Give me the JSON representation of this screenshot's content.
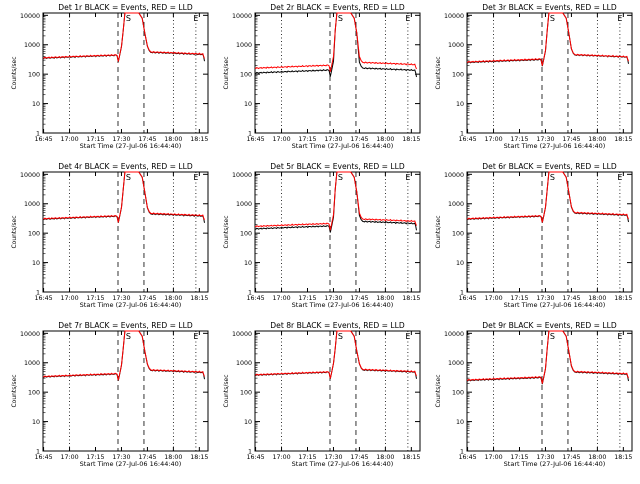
{
  "colors": {
    "events": "#000000",
    "lld": "#ff0000",
    "frame": "#000000",
    "background": "#ffffff"
  },
  "shared": {
    "xlabel": "Start Time (27-Jul-06 16:44:40)",
    "ylabel": "Counts/sec",
    "xticks": [
      "16:45",
      "17:00",
      "17:15",
      "17:30",
      "17:45",
      "18:00",
      "18:15"
    ],
    "yticks": [
      "1",
      "10",
      "100",
      "1000",
      "10000"
    ],
    "marker_S": "S",
    "marker_E": "E"
  },
  "chart_data": [
    {
      "type": "line",
      "title": "Det 1r BLACK = Events, RED = LLD",
      "xlabel": "Start Time (27-Jul-06 16:44:40)",
      "ylabel": "Counts/sec",
      "xlim": [
        "16:44:40",
        "18:20"
      ],
      "ylim": [
        1,
        12000
      ],
      "yscale": "log",
      "series": [
        {
          "name": "Events",
          "color": "#000000",
          "base": 350,
          "post": 550
        },
        {
          "name": "LLD",
          "color": "#ff0000",
          "base": 360,
          "post": 570
        }
      ],
      "markers": {
        "S": "17:34",
        "E": "18:13"
      }
    },
    {
      "type": "line",
      "title": "Det 2r BLACK = Events, RED = LLD",
      "xlabel": "Start Time (27-Jul-06 16:44:40)",
      "ylabel": "Counts/sec",
      "xlim": [
        "16:44:40",
        "18:20"
      ],
      "ylim": [
        1,
        12000
      ],
      "yscale": "log",
      "series": [
        {
          "name": "Events",
          "color": "#000000",
          "base": 110,
          "post": 160
        },
        {
          "name": "LLD",
          "color": "#ff0000",
          "base": 160,
          "post": 250
        }
      ],
      "markers": {
        "S": "17:34",
        "E": "18:13"
      }
    },
    {
      "type": "line",
      "title": "Det 3r BLACK = Events, RED = LLD",
      "xlabel": "Start Time (27-Jul-06 16:44:40)",
      "ylabel": "Counts/sec",
      "xlim": [
        "16:44:40",
        "18:20"
      ],
      "ylim": [
        1,
        12000
      ],
      "yscale": "log",
      "series": [
        {
          "name": "Events",
          "color": "#000000",
          "base": 250,
          "post": 450
        },
        {
          "name": "LLD",
          "color": "#ff0000",
          "base": 260,
          "post": 460
        }
      ],
      "markers": {
        "S": "17:34",
        "E": "18:13"
      }
    },
    {
      "type": "line",
      "title": "Det 4r BLACK = Events, RED = LLD",
      "xlabel": "Start Time (27-Jul-06 16:44:40)",
      "ylabel": "Counts/sec",
      "xlim": [
        "16:44:40",
        "18:20"
      ],
      "ylim": [
        1,
        12000
      ],
      "yscale": "log",
      "series": [
        {
          "name": "Events",
          "color": "#000000",
          "base": 300,
          "post": 450
        },
        {
          "name": "LLD",
          "color": "#ff0000",
          "base": 310,
          "post": 470
        }
      ],
      "markers": {
        "S": "17:34",
        "E": "18:13"
      }
    },
    {
      "type": "line",
      "title": "Det 5r BLACK = Events, RED = LLD",
      "xlabel": "Start Time (27-Jul-06 16:44:40)",
      "ylabel": "Counts/sec",
      "xlim": [
        "16:44:40",
        "18:20"
      ],
      "ylim": [
        1,
        12000
      ],
      "yscale": "log",
      "series": [
        {
          "name": "Events",
          "color": "#000000",
          "base": 140,
          "post": 250
        },
        {
          "name": "LLD",
          "color": "#ff0000",
          "base": 170,
          "post": 300
        }
      ],
      "markers": {
        "S": "17:34",
        "E": "18:13"
      }
    },
    {
      "type": "line",
      "title": "Det 6r BLACK = Events, RED = LLD",
      "xlabel": "Start Time (27-Jul-06 16:44:40)",
      "ylabel": "Counts/sec",
      "xlim": [
        "16:44:40",
        "18:20"
      ],
      "ylim": [
        1,
        12000
      ],
      "yscale": "log",
      "series": [
        {
          "name": "Events",
          "color": "#000000",
          "base": 300,
          "post": 480
        },
        {
          "name": "LLD",
          "color": "#ff0000",
          "base": 310,
          "post": 500
        }
      ],
      "markers": {
        "S": "17:34",
        "E": "18:13"
      }
    },
    {
      "type": "line",
      "title": "Det 7r BLACK = Events, RED = LLD",
      "xlabel": "Start Time (27-Jul-06 16:44:40)",
      "ylabel": "Counts/sec",
      "xlim": [
        "16:44:40",
        "18:20"
      ],
      "ylim": [
        1,
        12000
      ],
      "yscale": "log",
      "series": [
        {
          "name": "Events",
          "color": "#000000",
          "base": 330,
          "post": 550
        },
        {
          "name": "LLD",
          "color": "#ff0000",
          "base": 340,
          "post": 570
        }
      ],
      "markers": {
        "S": "17:34",
        "E": "18:13"
      }
    },
    {
      "type": "line",
      "title": "Det 8r BLACK = Events, RED = LLD",
      "xlabel": "Start Time (27-Jul-06 16:44:40)",
      "ylabel": "Counts/sec",
      "xlim": [
        "16:44:40",
        "18:20"
      ],
      "ylim": [
        1,
        12000
      ],
      "yscale": "log",
      "series": [
        {
          "name": "Events",
          "color": "#000000",
          "base": 380,
          "post": 570
        },
        {
          "name": "LLD",
          "color": "#ff0000",
          "base": 390,
          "post": 590
        }
      ],
      "markers": {
        "S": "17:34",
        "E": "18:13"
      }
    },
    {
      "type": "line",
      "title": "Det 9r BLACK = Events, RED = LLD",
      "xlabel": "Start Time (27-Jul-06 16:44:40)",
      "ylabel": "Counts/sec",
      "xlim": [
        "16:44:40",
        "18:20"
      ],
      "ylim": [
        1,
        12000
      ],
      "yscale": "log",
      "series": [
        {
          "name": "Events",
          "color": "#000000",
          "base": 250,
          "post": 480
        },
        {
          "name": "LLD",
          "color": "#ff0000",
          "base": 260,
          "post": 500
        }
      ],
      "markers": {
        "S": "17:34",
        "E": "18:13"
      }
    }
  ]
}
